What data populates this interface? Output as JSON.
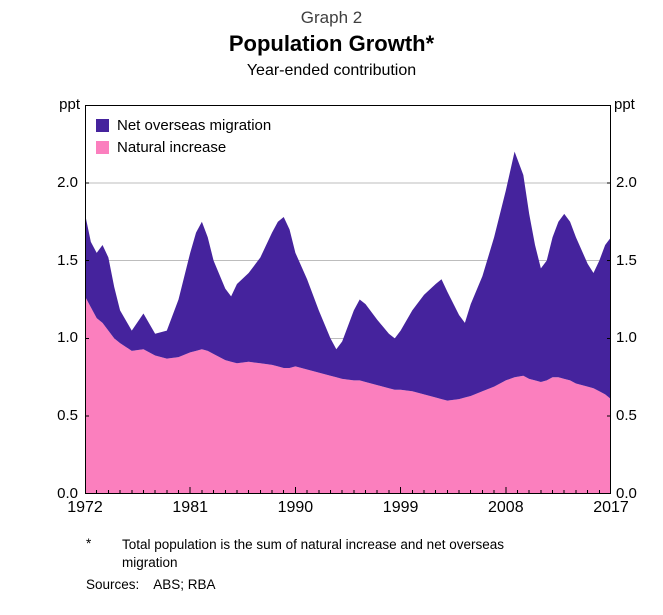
{
  "page": {
    "graph_label": "Graph 2",
    "title": "Population Growth*",
    "subtitle": "Year-ended contribution"
  },
  "axes": {
    "unit_left": "ppt",
    "unit_right": "ppt",
    "y_ticks": [
      "2.0",
      "1.5",
      "1.0",
      "0.5",
      "0.0"
    ],
    "y_tick_values": [
      2.0,
      1.5,
      1.0,
      0.5,
      0.0
    ],
    "x_ticks": [
      "1972",
      "1981",
      "1990",
      "1999",
      "2008",
      "2017"
    ],
    "x_tick_values": [
      1972,
      1981,
      1990,
      1999,
      2008,
      2017
    ]
  },
  "legend": [
    {
      "label": "Net overseas migration",
      "color": "#45239d"
    },
    {
      "label": "Natural increase",
      "color": "#fb7fbe"
    }
  ],
  "footnote": {
    "marker": "*",
    "line1": "Total population is the sum of natural increase and net overseas",
    "line2": "migration",
    "sources_label": "Sources:",
    "sources_value": "ABS; RBA"
  },
  "chart_data": {
    "type": "area",
    "stacked": true,
    "title": "Population Growth*",
    "subtitle": "Year-ended contribution",
    "ylabel": "ppt",
    "xlim": [
      1972,
      2017
    ],
    "ylim": [
      0,
      2.5
    ],
    "grid": true,
    "legend_position": "top-left",
    "x": [
      1972,
      1972.5,
      1973,
      1973.5,
      1974,
      1974.5,
      1975,
      1976,
      1977,
      1978,
      1979,
      1980,
      1981,
      1981.5,
      1982,
      1982.5,
      1983,
      1984,
      1984.5,
      1985,
      1986,
      1987,
      1988,
      1988.5,
      1989,
      1989.5,
      1990,
      1991,
      1992,
      1993,
      1993.5,
      1994,
      1995,
      1995.5,
      1996,
      1997,
      1998,
      1998.5,
      1999,
      2000,
      2001,
      2002,
      2002.5,
      2003,
      2004,
      2004.5,
      2005,
      2006,
      2007,
      2008,
      2008.75,
      2009.5,
      2010,
      2010.5,
      2011,
      2011.5,
      2012,
      2012.5,
      2013,
      2013.5,
      2014,
      2015,
      2015.5,
      2016,
      2016.5,
      2017
    ],
    "series": [
      {
        "name": "Natural increase",
        "color": "#fb7fbe",
        "values": [
          1.27,
          1.2,
          1.13,
          1.1,
          1.05,
          1.0,
          0.97,
          0.92,
          0.93,
          0.89,
          0.87,
          0.88,
          0.91,
          0.92,
          0.93,
          0.92,
          0.9,
          0.86,
          0.85,
          0.84,
          0.85,
          0.84,
          0.83,
          0.82,
          0.81,
          0.81,
          0.82,
          0.8,
          0.78,
          0.76,
          0.75,
          0.74,
          0.73,
          0.73,
          0.72,
          0.7,
          0.68,
          0.67,
          0.67,
          0.66,
          0.64,
          0.62,
          0.61,
          0.6,
          0.61,
          0.62,
          0.63,
          0.66,
          0.69,
          0.73,
          0.75,
          0.76,
          0.74,
          0.73,
          0.72,
          0.73,
          0.75,
          0.75,
          0.74,
          0.73,
          0.71,
          0.69,
          0.68,
          0.66,
          0.64,
          0.61
        ]
      },
      {
        "name": "Net overseas migration",
        "color": "#45239d",
        "values": [
          0.53,
          0.42,
          0.42,
          0.5,
          0.47,
          0.33,
          0.21,
          0.13,
          0.23,
          0.14,
          0.18,
          0.37,
          0.64,
          0.76,
          0.82,
          0.73,
          0.6,
          0.46,
          0.42,
          0.51,
          0.57,
          0.68,
          0.85,
          0.93,
          0.97,
          0.89,
          0.73,
          0.58,
          0.4,
          0.24,
          0.18,
          0.24,
          0.45,
          0.52,
          0.5,
          0.42,
          0.35,
          0.33,
          0.38,
          0.52,
          0.64,
          0.73,
          0.77,
          0.7,
          0.54,
          0.48,
          0.59,
          0.74,
          0.96,
          1.22,
          1.45,
          1.29,
          1.06,
          0.87,
          0.73,
          0.77,
          0.9,
          1.0,
          1.06,
          1.02,
          0.94,
          0.79,
          0.74,
          0.84,
          0.96,
          1.04
        ]
      }
    ]
  }
}
